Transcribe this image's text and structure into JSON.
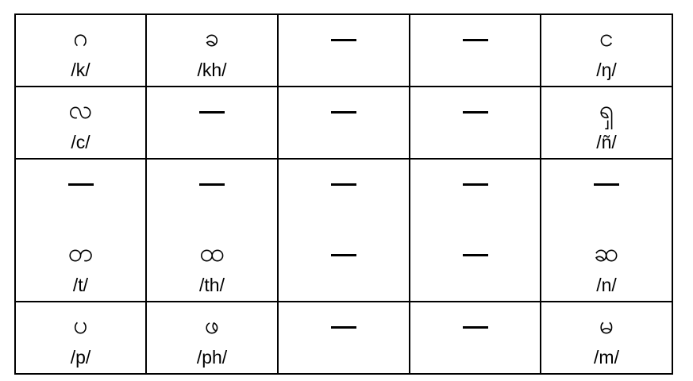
{
  "rows": [
    [
      {
        "glyph": "ဂ",
        "ipa": "/k/"
      },
      {
        "glyph": "ခ",
        "ipa": "/kh/"
      },
      {
        "empty": true
      },
      {
        "empty": true
      },
      {
        "glyph": "င",
        "ipa": "/ŋ/"
      }
    ],
    [
      {
        "glyph": "လ",
        "ipa": "/c/"
      },
      {
        "empty": true
      },
      {
        "empty": true
      },
      {
        "empty": true
      },
      {
        "glyph": "ၡ",
        "ipa": "/ñ/"
      }
    ],
    [
      {
        "empty": true
      },
      {
        "empty": true
      },
      {
        "empty": true
      },
      {
        "empty": true
      },
      {
        "empty": true
      }
    ],
    [
      {
        "glyph": "တ",
        "ipa": "/t/"
      },
      {
        "glyph": "ထ",
        "ipa": "/th/"
      },
      {
        "empty": true
      },
      {
        "empty": true
      },
      {
        "glyph": "ဆ",
        "ipa": "/n/"
      }
    ],
    [
      {
        "glyph": "ပ",
        "ipa": "/p/"
      },
      {
        "glyph": "ဖ",
        "ipa": "/ph/"
      },
      {
        "empty": true
      },
      {
        "empty": true
      },
      {
        "glyph": "မ",
        "ipa": "/m/"
      }
    ]
  ]
}
